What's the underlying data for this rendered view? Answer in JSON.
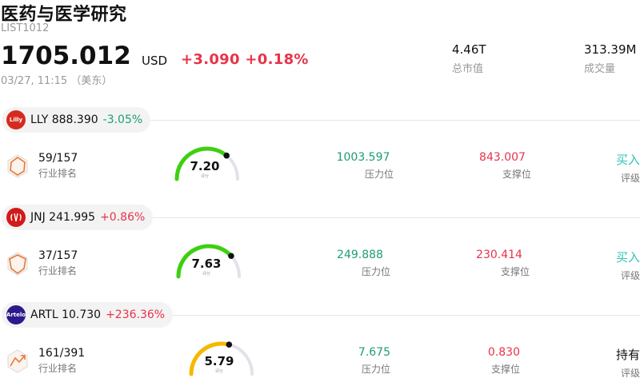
{
  "header": {
    "title": "医药与医学研究",
    "code": "LIST1012",
    "price": "1705.012",
    "currency": "USD",
    "change": "+3.090",
    "change_pct": "+0.18%",
    "time": "03/27, 11:15 （美东）",
    "market_cap_value": "4.46T",
    "market_cap_label": "总市值",
    "volume_value": "313.39M",
    "volume_label": "成交量"
  },
  "colors": {
    "up": "#e8334a",
    "down": "#1b9e77",
    "buy": "#2ec4b6",
    "gauge_green": "#3dd010",
    "gauge_yellow": "#f5b800",
    "gauge_track": "#e2e2ea"
  },
  "labels": {
    "rank": "行业排名",
    "score": "评分",
    "resistance": "压力位",
    "support": "支撑位",
    "rating": "评级"
  },
  "stocks": [
    {
      "ticker_price": "LLY 888.390",
      "change": "-3.05%",
      "direction": "down",
      "logo_text": "Lilly",
      "logo_color": "#d52b1e",
      "rank": "59/157",
      "score": "7.20",
      "score_value": 7.2,
      "resistance": "1003.597",
      "support": "843.007",
      "rating": "买入",
      "rating_type": "buy"
    },
    {
      "ticker_price": "JNJ 241.995",
      "change": "+0.86%",
      "direction": "up",
      "logo_text": "",
      "logo_color": "#d21a1a",
      "rank": "37/157",
      "score": "7.63",
      "score_value": 7.63,
      "resistance": "249.888",
      "support": "230.414",
      "rating": "买入",
      "rating_type": "buy"
    },
    {
      "ticker_price": "ARTL 10.730",
      "change": "+236.36%",
      "direction": "up",
      "logo_text": "Artelo",
      "logo_color": "#2b1a8c",
      "rank": "161/391",
      "score": "5.79",
      "score_value": 5.79,
      "resistance": "7.675",
      "support": "0.830",
      "rating": "持有",
      "rating_type": "hold"
    }
  ]
}
